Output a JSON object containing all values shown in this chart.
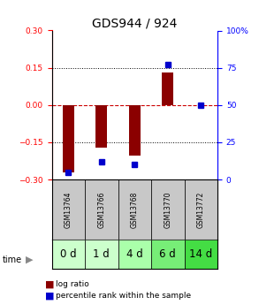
{
  "title": "GDS944 / 924",
  "samples": [
    "GSM13764",
    "GSM13766",
    "GSM13768",
    "GSM13770",
    "GSM13772"
  ],
  "time_labels": [
    "0 d",
    "1 d",
    "4 d",
    "6 d",
    "14 d"
  ],
  "log_ratios": [
    -0.27,
    -0.17,
    -0.205,
    0.13,
    0.0
  ],
  "percentile_ranks": [
    5,
    12,
    10,
    77,
    50
  ],
  "ylim_left": [
    -0.3,
    0.3
  ],
  "ylim_right": [
    0,
    100
  ],
  "yticks_left": [
    -0.3,
    -0.15,
    0,
    0.15,
    0.3
  ],
  "yticks_right": [
    0,
    25,
    50,
    75,
    100
  ],
  "bar_color": "#8B0000",
  "dot_color": "#0000CC",
  "zero_line_color": "#CC0000",
  "bg_color": "#FFFFFF",
  "cell_gray": "#C8C8C8",
  "green_colors": [
    "#CCFFCC",
    "#CCFFCC",
    "#AAFFAA",
    "#77EE77",
    "#44DD44"
  ],
  "title_fontsize": 10,
  "tick_fontsize": 6.5,
  "legend_fontsize": 6.5,
  "gsm_fontsize": 5.5,
  "time_fontsize": 8.5,
  "bar_width": 0.35
}
